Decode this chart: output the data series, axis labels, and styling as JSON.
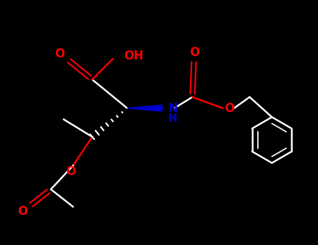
{
  "bg": "#000000",
  "white": "#ffffff",
  "red": "#ff0000",
  "blue": "#0000cc",
  "xlim": [
    0,
    10
  ],
  "ylim": [
    0,
    7.7
  ],
  "figsize": [
    4.55,
    3.5
  ],
  "dpi": 100
}
